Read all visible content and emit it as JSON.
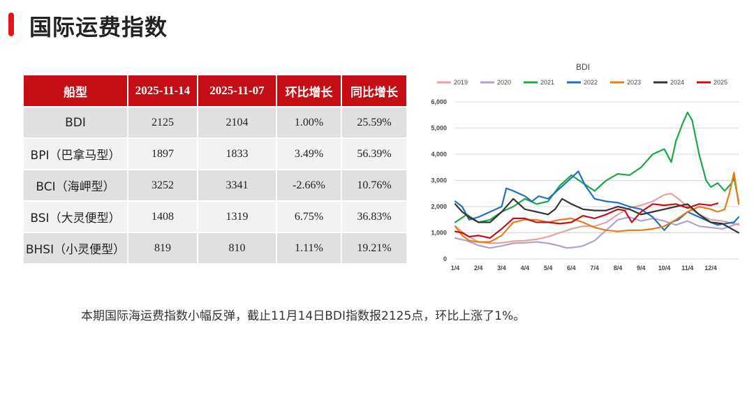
{
  "page": {
    "title": "国际运费指数",
    "caption": "本期国际海运费指数小幅反弹，截止11月14日BDI指数报2125点，环比上涨了1%。"
  },
  "table": {
    "headers": [
      "船型",
      "2025-11-14",
      "2025-11-07",
      "环比增长",
      "同比增长"
    ],
    "rows": [
      [
        "BDI",
        "2125",
        "2104",
        "1.00%",
        "25.59%"
      ],
      [
        "BPI（巴拿马型）",
        "1897",
        "1833",
        "3.49%",
        "56.39%"
      ],
      [
        "BCI（海岬型）",
        "3252",
        "3341",
        "-2.66%",
        "10.76%"
      ],
      [
        "BSI（大灵便型）",
        "1408",
        "1319",
        "6.75%",
        "36.83%"
      ],
      [
        "BHSI（小灵便型）",
        "819",
        "810",
        "1.11%",
        "19.21%"
      ]
    ]
  },
  "chart_data": {
    "type": "line",
    "title": "BDI",
    "x_ticks": [
      "1/4",
      "2/4",
      "3/4",
      "4/4",
      "5/4",
      "6/4",
      "7/4",
      "8/4",
      "9/4",
      "10/4",
      "11/4",
      "12/4"
    ],
    "y_ticks": [
      "0",
      "1,000",
      "2,000",
      "3,000",
      "4,000",
      "5,000",
      "6,000"
    ],
    "ylim": [
      0,
      6000
    ],
    "x_domain": [
      0,
      12.2
    ],
    "grid": true,
    "legend": "top",
    "series": [
      {
        "name": "2019",
        "color": "#e6a0a0",
        "points": [
          [
            0,
            1250
          ],
          [
            0.5,
            900
          ],
          [
            1,
            650
          ],
          [
            1.5,
            600
          ],
          [
            2,
            620
          ],
          [
            2.5,
            680
          ],
          [
            3,
            700
          ],
          [
            3.5,
            750
          ],
          [
            4,
            850
          ],
          [
            4.5,
            1000
          ],
          [
            5,
            1150
          ],
          [
            5.5,
            1250
          ],
          [
            6,
            1250
          ],
          [
            6.5,
            1400
          ],
          [
            7,
            1700
          ],
          [
            7.5,
            1950
          ],
          [
            8,
            2050
          ],
          [
            8.5,
            2200
          ],
          [
            9,
            2450
          ],
          [
            9.3,
            2500
          ],
          [
            9.6,
            2300
          ],
          [
            10,
            2000
          ],
          [
            10.5,
            1700
          ],
          [
            11,
            1500
          ],
          [
            11.5,
            1450
          ],
          [
            12,
            1350
          ],
          [
            12.2,
            1300
          ]
        ]
      },
      {
        "name": "2020",
        "color": "#b4a0cc",
        "points": [
          [
            0,
            800
          ],
          [
            0.5,
            700
          ],
          [
            1,
            520
          ],
          [
            1.5,
            420
          ],
          [
            2,
            500
          ],
          [
            2.5,
            600
          ],
          [
            3,
            620
          ],
          [
            3.5,
            650
          ],
          [
            4,
            600
          ],
          [
            4.5,
            500
          ],
          [
            4.8,
            420
          ],
          [
            5.2,
            450
          ],
          [
            5.5,
            500
          ],
          [
            6,
            700
          ],
          [
            6.5,
            1100
          ],
          [
            7,
            1500
          ],
          [
            7.5,
            1600
          ],
          [
            8,
            1450
          ],
          [
            8.5,
            1550
          ],
          [
            9,
            1450
          ],
          [
            9.5,
            1300
          ],
          [
            10,
            1450
          ],
          [
            10.5,
            1250
          ],
          [
            11,
            1200
          ],
          [
            11.5,
            1150
          ],
          [
            12,
            1300
          ],
          [
            12.2,
            1350
          ]
        ]
      },
      {
        "name": "2021",
        "color": "#1ca64c",
        "points": [
          [
            0,
            1400
          ],
          [
            0.5,
            1700
          ],
          [
            1,
            1400
          ],
          [
            1.5,
            1500
          ],
          [
            2,
            1800
          ],
          [
            2.5,
            2000
          ],
          [
            3,
            2300
          ],
          [
            3.5,
            2100
          ],
          [
            4,
            2200
          ],
          [
            4.5,
            2800
          ],
          [
            5,
            3200
          ],
          [
            5.5,
            2900
          ],
          [
            6,
            2600
          ],
          [
            6.5,
            3000
          ],
          [
            7,
            3250
          ],
          [
            7.5,
            3200
          ],
          [
            8,
            3500
          ],
          [
            8.5,
            4000
          ],
          [
            9,
            4200
          ],
          [
            9.3,
            3700
          ],
          [
            9.5,
            4500
          ],
          [
            9.8,
            5200
          ],
          [
            10,
            5600
          ],
          [
            10.2,
            5300
          ],
          [
            10.5,
            4000
          ],
          [
            10.8,
            3000
          ],
          [
            11,
            2750
          ],
          [
            11.3,
            2900
          ],
          [
            11.6,
            2600
          ],
          [
            11.9,
            2900
          ],
          [
            12,
            3100
          ],
          [
            12.2,
            2200
          ]
        ]
      },
      {
        "name": "2022",
        "color": "#1f6fc4",
        "points": [
          [
            0,
            2200
          ],
          [
            0.3,
            2000
          ],
          [
            0.6,
            1500
          ],
          [
            1,
            1600
          ],
          [
            1.5,
            1800
          ],
          [
            2,
            2000
          ],
          [
            2.2,
            2700
          ],
          [
            2.5,
            2600
          ],
          [
            3,
            2400
          ],
          [
            3.3,
            2200
          ],
          [
            3.6,
            2400
          ],
          [
            4,
            2300
          ],
          [
            4.5,
            2700
          ],
          [
            5,
            3100
          ],
          [
            5.3,
            3350
          ],
          [
            5.6,
            2800
          ],
          [
            6,
            2300
          ],
          [
            6.5,
            2200
          ],
          [
            7,
            2150
          ],
          [
            7.5,
            2000
          ],
          [
            8,
            1900
          ],
          [
            8.5,
            1600
          ],
          [
            8.8,
            1300
          ],
          [
            9,
            1100
          ],
          [
            9.3,
            1400
          ],
          [
            9.6,
            1500
          ],
          [
            10,
            1800
          ],
          [
            10.5,
            1600
          ],
          [
            11,
            1400
          ],
          [
            11.3,
            1300
          ],
          [
            11.6,
            1350
          ],
          [
            12,
            1400
          ],
          [
            12.2,
            1600
          ]
        ]
      },
      {
        "name": "2023",
        "color": "#e87c1a",
        "points": [
          [
            0,
            1250
          ],
          [
            0.3,
            900
          ],
          [
            0.6,
            700
          ],
          [
            1,
            650
          ],
          [
            1.5,
            650
          ],
          [
            2,
            900
          ],
          [
            2.5,
            1400
          ],
          [
            3,
            1500
          ],
          [
            3.5,
            1500
          ],
          [
            4,
            1400
          ],
          [
            4.5,
            1500
          ],
          [
            5,
            1550
          ],
          [
            5.5,
            1400
          ],
          [
            6,
            1200
          ],
          [
            6.5,
            1100
          ],
          [
            7,
            1050
          ],
          [
            7.5,
            1100
          ],
          [
            8,
            1100
          ],
          [
            8.5,
            1150
          ],
          [
            9,
            1250
          ],
          [
            9.5,
            1500
          ],
          [
            10,
            1800
          ],
          [
            10.5,
            2000
          ],
          [
            11,
            1900
          ],
          [
            11.3,
            1800
          ],
          [
            11.6,
            1900
          ],
          [
            11.8,
            2500
          ],
          [
            12,
            3300
          ],
          [
            12.1,
            2700
          ],
          [
            12.2,
            2100
          ]
        ]
      },
      {
        "name": "2024",
        "color": "#333333",
        "points": [
          [
            0,
            2100
          ],
          [
            0.3,
            1800
          ],
          [
            0.6,
            1600
          ],
          [
            1,
            1400
          ],
          [
            1.5,
            1400
          ],
          [
            2,
            1800
          ],
          [
            2.5,
            2300
          ],
          [
            3,
            1900
          ],
          [
            3.5,
            1800
          ],
          [
            4,
            1700
          ],
          [
            4.3,
            1900
          ],
          [
            4.6,
            2300
          ],
          [
            5,
            2100
          ],
          [
            5.5,
            1900
          ],
          [
            6,
            1850
          ],
          [
            6.5,
            1850
          ],
          [
            7,
            2000
          ],
          [
            7.5,
            1900
          ],
          [
            8,
            1700
          ],
          [
            8.5,
            1800
          ],
          [
            9,
            1900
          ],
          [
            9.5,
            2000
          ],
          [
            10,
            2100
          ],
          [
            10.5,
            1700
          ],
          [
            11,
            1400
          ],
          [
            11.5,
            1350
          ],
          [
            12,
            1100
          ],
          [
            12.2,
            1000
          ]
        ]
      },
      {
        "name": "2025",
        "color": "#c0101a",
        "points": [
          [
            0,
            1050
          ],
          [
            0.3,
            1000
          ],
          [
            0.6,
            850
          ],
          [
            1,
            900
          ],
          [
            1.5,
            800
          ],
          [
            2,
            1150
          ],
          [
            2.5,
            1550
          ],
          [
            3,
            1550
          ],
          [
            3.5,
            1400
          ],
          [
            4,
            1400
          ],
          [
            4.5,
            1350
          ],
          [
            5,
            1400
          ],
          [
            5.5,
            1650
          ],
          [
            6,
            1550
          ],
          [
            6.5,
            1700
          ],
          [
            7,
            1900
          ],
          [
            7.3,
            1850
          ],
          [
            7.6,
            1400
          ],
          [
            8,
            1800
          ],
          [
            8.5,
            2100
          ],
          [
            9,
            2050
          ],
          [
            9.5,
            2100
          ],
          [
            10,
            1950
          ],
          [
            10.5,
            2100
          ],
          [
            11,
            2050
          ],
          [
            11.3,
            2125
          ]
        ]
      }
    ]
  }
}
